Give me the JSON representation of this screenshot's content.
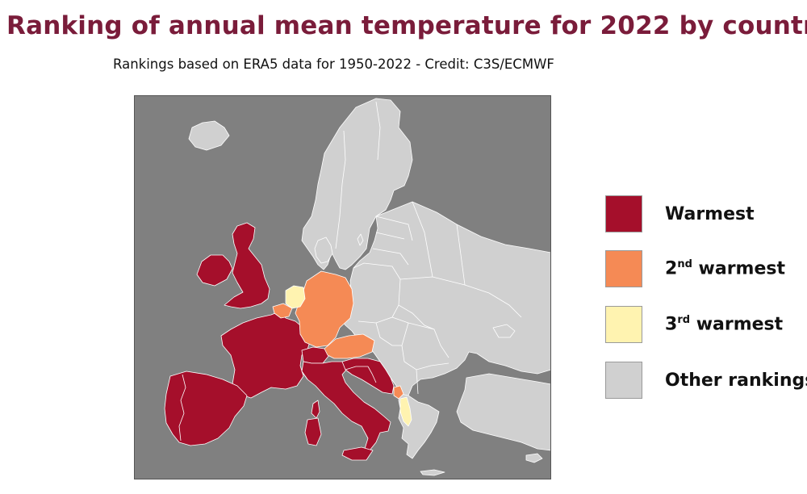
{
  "title": "Ranking of annual mean temperature for 2022 by country",
  "subtitle": "Rankings based on ERA5 data for 1950-2022 - Credit: C3S/ECMWF",
  "colors": {
    "warmest": "#a50f2b",
    "second": "#f58a55",
    "third": "#fff3b0",
    "other": "#d0d0d0",
    "sea": "#808080",
    "borders": "#ffffff"
  },
  "legend": [
    {
      "key": "warmest",
      "text": "Warmest",
      "sup": "",
      "rest": ""
    },
    {
      "key": "second",
      "text": "2",
      "sup": "nd",
      "rest": " warmest"
    },
    {
      "key": "third",
      "text": "3",
      "sup": "rd",
      "rest": " warmest"
    },
    {
      "key": "other",
      "text": "Other rankings",
      "sup": "",
      "rest": ""
    }
  ],
  "countries": {
    "warmest": [
      "Ireland",
      "United Kingdom",
      "France",
      "Spain",
      "Portugal",
      "Switzerland",
      "Italy",
      "Slovenia",
      "Croatia",
      "Bosnia and Herzegovina",
      "Corsica",
      "Sardinia",
      "Sicily"
    ],
    "second": [
      "Belgium",
      "Germany",
      "Austria",
      "Montenegro"
    ],
    "third": [
      "Netherlands",
      "Albania"
    ],
    "other": [
      "Iceland",
      "Norway",
      "Sweden",
      "Finland",
      "Denmark",
      "Estonia",
      "Latvia",
      "Lithuania",
      "Poland",
      "Czechia",
      "Slovakia",
      "Hungary",
      "Romania",
      "Bulgaria",
      "Serbia",
      "North Macedonia",
      "Greece",
      "Turkey",
      "Ukraine",
      "Belarus",
      "Russia",
      "Moldova",
      "Cyprus"
    ]
  }
}
